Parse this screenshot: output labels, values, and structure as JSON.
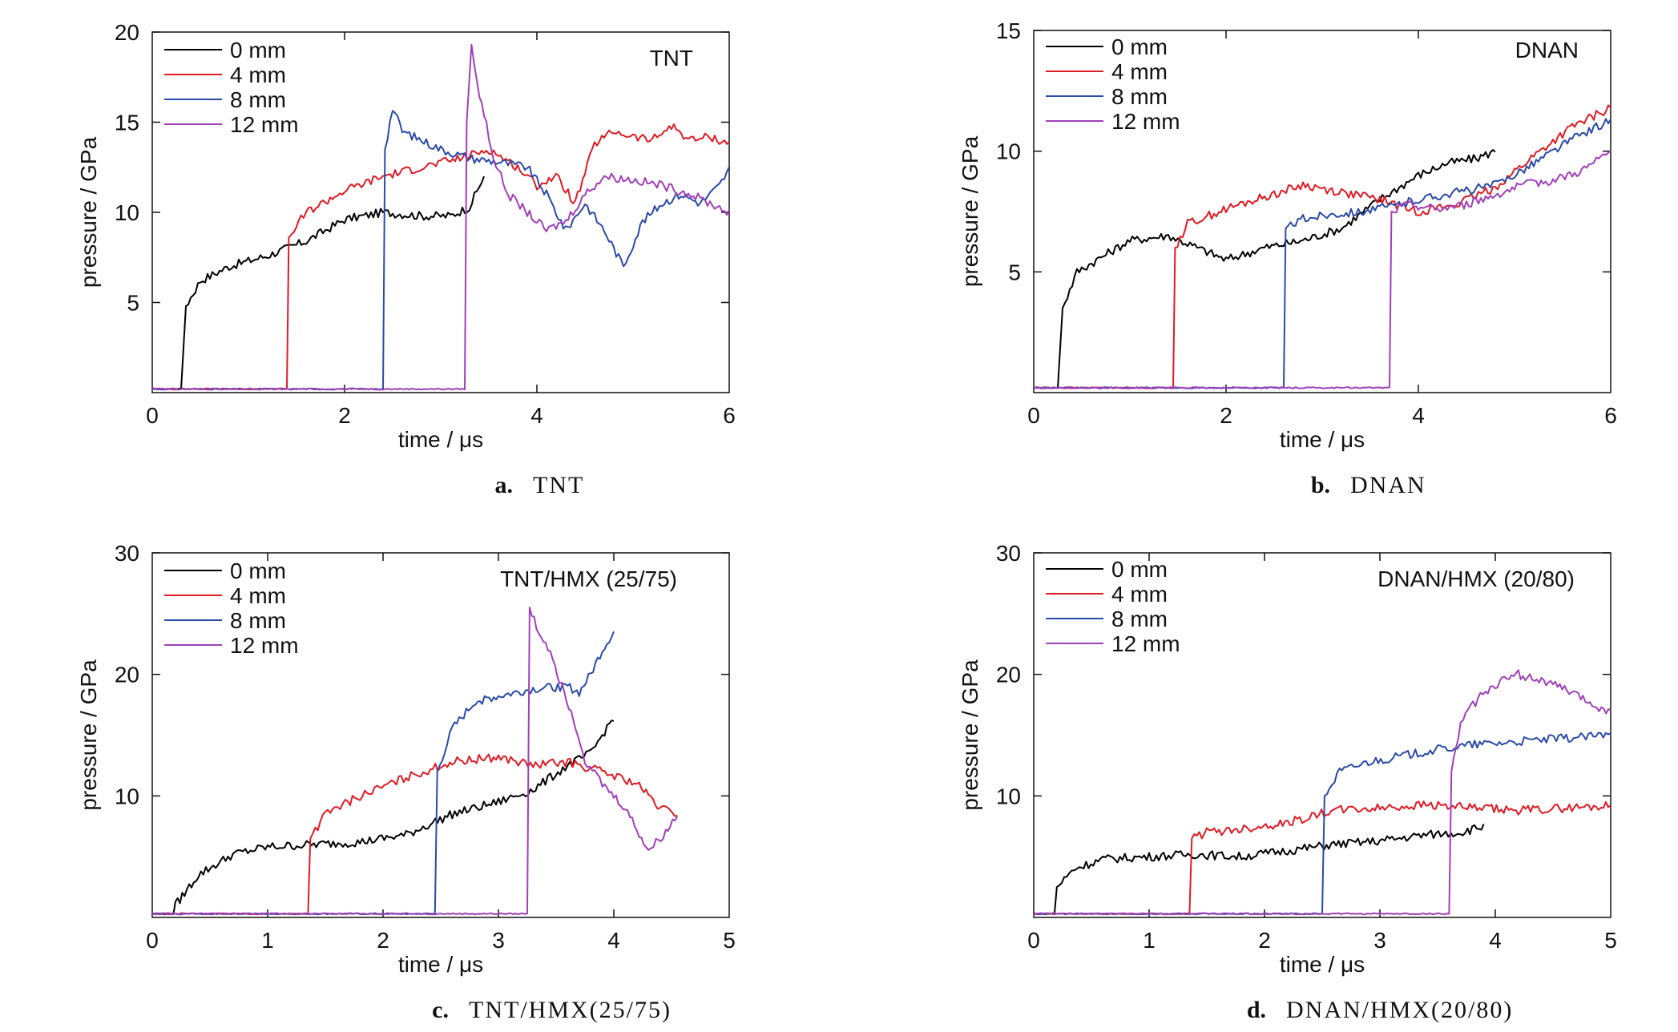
{
  "figure": {
    "captions": [
      {
        "letter": "a.",
        "text": "TNT"
      },
      {
        "letter": "b.",
        "text": "DNAN"
      },
      {
        "letter": "c.",
        "text": "TNT/HMX(25/75)"
      },
      {
        "letter": "d.",
        "text": "DNAN/HMX(20/80)"
      }
    ]
  },
  "chart_data": [
    {
      "type": "line",
      "title": "TNT",
      "xlabel": "time / μs",
      "ylabel": "pressure / GPa",
      "xlim": [
        0,
        6
      ],
      "ylim": [
        0,
        20
      ],
      "xticks": [
        0,
        2,
        4,
        6
      ],
      "yticks": [
        5,
        10,
        15,
        20
      ],
      "x_ticklabels": [
        "0",
        "2",
        "4",
        "6"
      ],
      "y_ticklabels": [
        "5",
        "10",
        "15",
        "20"
      ],
      "grid": false,
      "legend": "top-left",
      "series": [
        {
          "name": "0 mm",
          "color": "#000000",
          "x": [
            0,
            0.3,
            0.35,
            0.5,
            0.8,
            1.2,
            1.6,
            2.0,
            2.4,
            2.8,
            3.1,
            3.3,
            3.45
          ],
          "y": [
            0.2,
            0.2,
            4.8,
            6.2,
            7.0,
            7.6,
            8.4,
            9.6,
            10.0,
            9.8,
            9.8,
            10.3,
            12.0
          ]
        },
        {
          "name": "4 mm",
          "color": "#e01b24",
          "x": [
            0,
            1.4,
            1.42,
            1.6,
            2.0,
            2.4,
            2.8,
            3.2,
            3.5,
            3.8,
            4.0,
            4.2,
            4.4,
            4.6,
            4.8,
            5.0,
            5.2,
            5.4,
            5.6,
            5.8,
            6.0
          ],
          "y": [
            0.2,
            0.2,
            8.6,
            10.0,
            11.2,
            12.0,
            12.5,
            13.0,
            13.5,
            12.5,
            11.5,
            12.0,
            10.5,
            13.8,
            14.5,
            14.2,
            14.0,
            14.8,
            14.0,
            14.2,
            13.8
          ]
        },
        {
          "name": "8 mm",
          "color": "#2a4aa8",
          "x": [
            0,
            2.4,
            2.42,
            2.5,
            2.6,
            2.8,
            3.0,
            3.3,
            3.6,
            3.9,
            4.1,
            4.3,
            4.5,
            4.7,
            4.9,
            5.1,
            5.3,
            5.5,
            5.7,
            5.9,
            6.0
          ],
          "y": [
            0.2,
            0.2,
            13.5,
            15.8,
            14.5,
            14.0,
            13.5,
            13.0,
            12.8,
            12.5,
            11.0,
            9.0,
            10.5,
            9.0,
            7.0,
            9.5,
            10.5,
            11.0,
            10.5,
            11.5,
            12.4
          ]
        },
        {
          "name": "12 mm",
          "color": "#a040b8",
          "x": [
            0,
            3.25,
            3.27,
            3.32,
            3.38,
            3.45,
            3.55,
            3.7,
            3.9,
            4.1,
            4.3,
            4.5,
            4.7,
            5.0,
            5.3,
            5.6,
            5.8,
            6.0
          ],
          "y": [
            0.2,
            0.2,
            15.0,
            19.3,
            17.0,
            15.5,
            13.0,
            11.0,
            10.0,
            9.0,
            9.5,
            11.0,
            12.0,
            11.8,
            11.5,
            11.0,
            10.5,
            10.0
          ]
        }
      ]
    },
    {
      "type": "line",
      "title": "DNAN",
      "xlabel": "time / μs",
      "ylabel": "pressure / GPa",
      "xlim": [
        0,
        6
      ],
      "ylim": [
        0,
        15
      ],
      "xticks": [
        0,
        2,
        4,
        6
      ],
      "yticks": [
        5,
        10,
        15
      ],
      "x_ticklabels": [
        "0",
        "2",
        "4",
        "6"
      ],
      "y_ticklabels": [
        "5",
        "10",
        "15"
      ],
      "grid": false,
      "legend": "top-left",
      "series": [
        {
          "name": "0 mm",
          "color": "#000000",
          "x": [
            0,
            0.25,
            0.3,
            0.45,
            0.7,
            1.0,
            1.4,
            1.7,
            2.0,
            2.4,
            2.8,
            3.2,
            3.6,
            4.0,
            4.3,
            4.6,
            4.8
          ],
          "y": [
            0.2,
            0.2,
            3.5,
            5.0,
            5.6,
            6.3,
            6.5,
            6.0,
            5.5,
            6.0,
            6.3,
            6.8,
            8.0,
            9.0,
            9.5,
            9.7,
            10.0
          ]
        },
        {
          "name": "4 mm",
          "color": "#e01b24",
          "x": [
            0,
            1.45,
            1.47,
            1.6,
            2.0,
            2.4,
            2.8,
            3.2,
            3.6,
            4.0,
            4.4,
            4.8,
            5.2,
            5.6,
            6.0
          ],
          "y": [
            0.2,
            0.2,
            6.0,
            7.0,
            7.6,
            8.1,
            8.6,
            8.3,
            8.0,
            7.5,
            7.8,
            8.5,
            9.8,
            11.0,
            11.8
          ]
        },
        {
          "name": "8 mm",
          "color": "#2a4aa8",
          "x": [
            0,
            2.6,
            2.62,
            2.8,
            3.1,
            3.4,
            3.7,
            4.0,
            4.4,
            4.8,
            5.2,
            5.6,
            6.0
          ],
          "y": [
            0.2,
            0.2,
            6.8,
            7.2,
            7.4,
            7.5,
            7.7,
            8.0,
            8.3,
            8.6,
            9.5,
            10.5,
            11.3
          ]
        },
        {
          "name": "12 mm",
          "color": "#a040b8",
          "x": [
            0,
            3.7,
            3.72,
            3.9,
            4.2,
            4.5,
            4.8,
            5.1,
            5.4,
            5.7,
            6.0
          ],
          "y": [
            0.2,
            0.2,
            7.5,
            7.8,
            7.6,
            7.8,
            8.2,
            8.6,
            8.8,
            9.2,
            10.0
          ]
        }
      ]
    },
    {
      "type": "line",
      "title": "TNT/HMX (25/75)",
      "xlabel": "time / μs",
      "ylabel": "pressure / GPa",
      "xlim": [
        0,
        5
      ],
      "ylim": [
        0,
        30
      ],
      "xticks": [
        0,
        1,
        2,
        3,
        4,
        5
      ],
      "yticks": [
        10,
        20,
        30
      ],
      "x_ticklabels": [
        "0",
        "1",
        "2",
        "3",
        "4",
        "5"
      ],
      "y_ticklabels": [
        "10",
        "20",
        "30"
      ],
      "grid": false,
      "legend": "top-left",
      "series": [
        {
          "name": "0 mm",
          "color": "#000000",
          "x": [
            0,
            0.18,
            0.2,
            0.4,
            0.7,
            1.0,
            1.4,
            1.8,
            2.2,
            2.6,
            3.0,
            3.3,
            3.6,
            3.8,
            4.0
          ],
          "y": [
            0.3,
            0.3,
            1.0,
            3.5,
            5.2,
            5.8,
            6.0,
            6.2,
            6.8,
            8.5,
            9.5,
            10.5,
            12.5,
            13.5,
            16.5
          ]
        },
        {
          "name": "4 mm",
          "color": "#e01b24",
          "x": [
            0,
            1.35,
            1.37,
            1.5,
            1.8,
            2.2,
            2.6,
            3.0,
            3.3,
            3.6,
            3.9,
            4.2,
            4.4,
            4.55
          ],
          "y": [
            0.3,
            0.3,
            6.5,
            8.5,
            10.0,
            11.5,
            12.8,
            13.2,
            12.5,
            12.8,
            12.0,
            11.0,
            9.0,
            8.5
          ]
        },
        {
          "name": "8 mm",
          "color": "#2a4aa8",
          "x": [
            0,
            2.45,
            2.47,
            2.6,
            2.8,
            3.0,
            3.3,
            3.6,
            3.7,
            3.8,
            3.9,
            4.0
          ],
          "y": [
            0.3,
            0.3,
            12.0,
            15.5,
            17.8,
            18.2,
            18.8,
            19.0,
            18.5,
            20.0,
            22.0,
            23.5
          ]
        },
        {
          "name": "12 mm",
          "color": "#a040b8",
          "x": [
            0,
            3.25,
            3.27,
            3.35,
            3.45,
            3.55,
            3.65,
            3.75,
            3.9,
            4.1,
            4.3,
            4.45,
            4.55
          ],
          "y": [
            0.3,
            0.3,
            25.5,
            23.5,
            22.0,
            19.0,
            16.5,
            13.0,
            11.0,
            9.0,
            5.5,
            7.0,
            8.5
          ]
        }
      ]
    },
    {
      "type": "line",
      "title": "DNAN/HMX (20/80)",
      "xlabel": "time / μs",
      "ylabel": "pressure / GPa",
      "xlim": [
        0,
        5
      ],
      "ylim": [
        0,
        30
      ],
      "xticks": [
        0,
        1,
        2,
        3,
        4,
        5
      ],
      "yticks": [
        10,
        20,
        30
      ],
      "x_ticklabels": [
        "0",
        "1",
        "2",
        "3",
        "4",
        "5"
      ],
      "y_ticklabels": [
        "10",
        "20",
        "30"
      ],
      "grid": false,
      "legend": "top-left",
      "series": [
        {
          "name": "0 mm",
          "color": "#000000",
          "x": [
            0,
            0.18,
            0.2,
            0.35,
            0.6,
            1.0,
            1.4,
            1.8,
            2.2,
            2.6,
            3.0,
            3.4,
            3.7,
            3.9
          ],
          "y": [
            0.3,
            0.3,
            2.5,
            4.0,
            4.8,
            5.0,
            5.2,
            5.0,
            5.5,
            6.0,
            6.3,
            6.8,
            7.0,
            7.5
          ]
        },
        {
          "name": "4 mm",
          "color": "#e01b24",
          "x": [
            0,
            1.35,
            1.37,
            1.5,
            1.8,
            2.2,
            2.6,
            3.0,
            3.4,
            3.8,
            4.2,
            4.6,
            5.0
          ],
          "y": [
            0.3,
            0.3,
            6.5,
            7.0,
            7.3,
            7.8,
            8.8,
            9.0,
            9.3,
            9.0,
            8.8,
            9.0,
            9.2
          ]
        },
        {
          "name": "8 mm",
          "color": "#2a4aa8",
          "x": [
            0,
            2.5,
            2.52,
            2.65,
            2.9,
            3.2,
            3.5,
            3.8,
            4.1,
            4.4,
            4.7,
            5.0
          ],
          "y": [
            0.3,
            0.3,
            10.0,
            12.0,
            12.8,
            13.3,
            13.8,
            14.2,
            14.4,
            14.6,
            14.8,
            15.0
          ]
        },
        {
          "name": "12 mm",
          "color": "#a040b8",
          "x": [
            0,
            3.6,
            3.62,
            3.7,
            3.85,
            4.0,
            4.2,
            4.4,
            4.6,
            4.8,
            5.0
          ],
          "y": [
            0.3,
            0.3,
            12.0,
            16.0,
            18.0,
            19.2,
            20.0,
            19.5,
            18.8,
            17.8,
            16.8
          ]
        }
      ]
    }
  ]
}
